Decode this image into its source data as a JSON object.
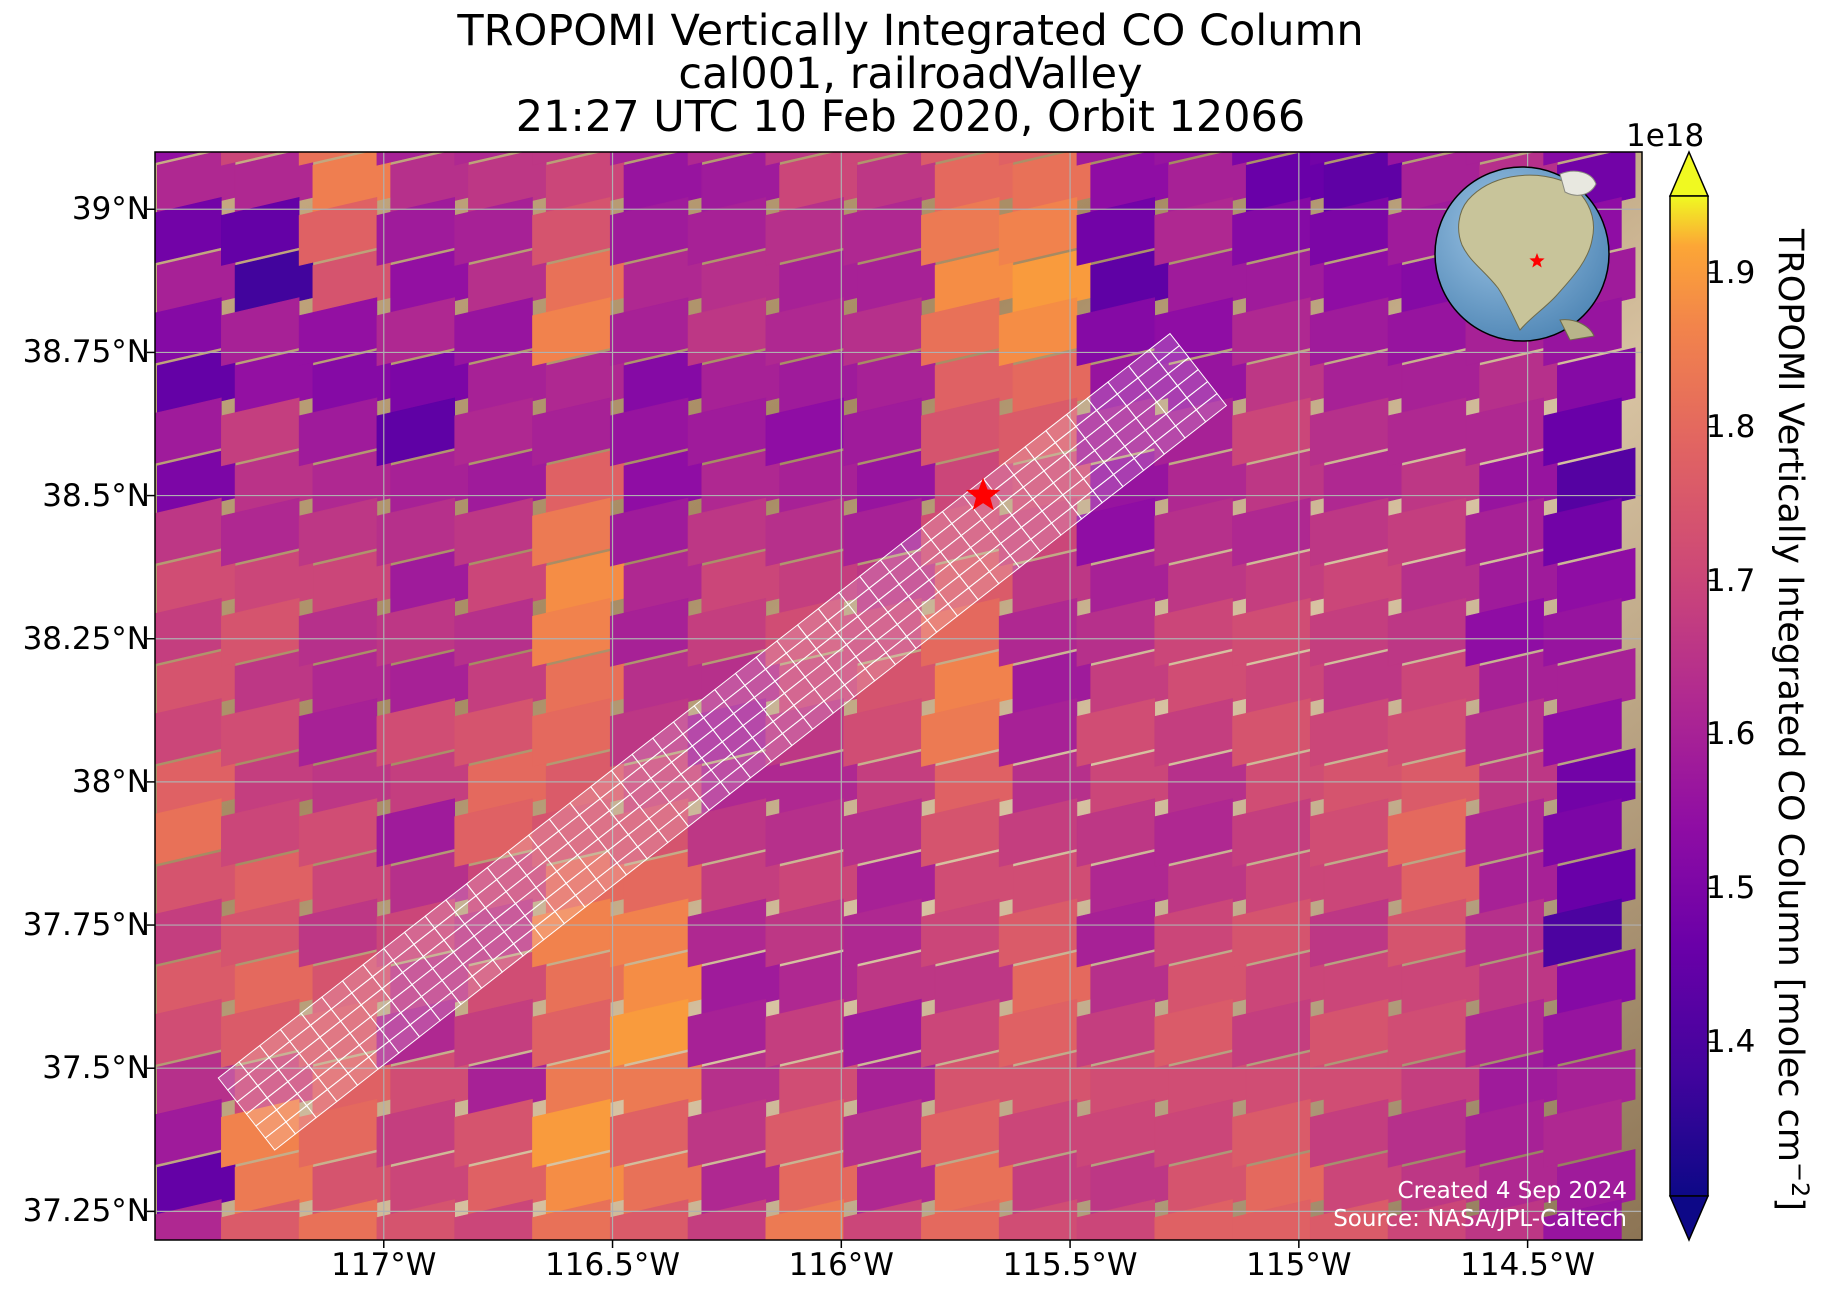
{
  "title": {
    "line1": "TROPOMI Vertically Integrated CO Column",
    "line2": "cal001, railroadValley",
    "line3": "21:27 UTC 10 Feb 2020, Orbit 12066"
  },
  "credits": {
    "created": "Created 4 Sep 2024",
    "source": "Source: NASA/JPL-Caltech"
  },
  "chart_data": {
    "type": "heatmap",
    "map": true,
    "lon_range": [
      -117.5,
      -114.25
    ],
    "lat_range": [
      37.2,
      39.1
    ],
    "x_ticks": [
      -117,
      -116.5,
      -116,
      -115.5,
      -115,
      -114.5
    ],
    "x_tick_labels": [
      "117°W",
      "116.5°W",
      "116°W",
      "115.5°W",
      "115°W",
      "114.5°W"
    ],
    "y_ticks": [
      37.25,
      37.5,
      37.75,
      38,
      38.25,
      38.5,
      38.75,
      39
    ],
    "y_tick_labels": [
      "37.25°N",
      "37.5°N",
      "37.75°N",
      "38°N",
      "38.25°N",
      "38.5°N",
      "38.75°N",
      "39°N"
    ],
    "grid": true,
    "colorbar": {
      "label": "TROPOMI Vertically Integrated CO Column [molec cm",
      "label_exponent": "−2",
      "label_close": "]",
      "offset_text": "1e18",
      "range": [
        1.3,
        1.95
      ],
      "ticks": [
        1.4,
        1.5,
        1.6,
        1.7,
        1.8,
        1.9
      ],
      "tick_labels": [
        "1.4",
        "1.5",
        "1.6",
        "1.7",
        "1.8",
        "1.9"
      ],
      "colormap": "plasma",
      "extend": "both"
    },
    "site_marker": {
      "name": "railroadValley",
      "lon": -115.69,
      "lat": 38.5,
      "symbol": "star",
      "color": "#ff0000"
    },
    "target_swath": {
      "outline_color": "#ffffff",
      "start": {
        "lon": -117.3,
        "lat": 37.42
      },
      "end": {
        "lon": -115.22,
        "lat": 38.72
      }
    },
    "inset_globe": {
      "marker_lon": -115.69,
      "marker_lat": 38.5,
      "marker_color": "#ff0000"
    },
    "swath_columns": [
      {
        "lon": -117.44,
        "values": [
          1.55,
          1.62,
          1.48,
          1.6,
          1.52,
          1.45,
          1.58,
          1.5,
          1.66,
          1.72,
          1.68,
          1.74,
          1.7,
          1.78,
          1.82,
          1.74,
          1.68,
          1.76,
          1.72,
          1.64,
          1.58,
          1.45,
          1.62,
          1.6
        ]
      },
      {
        "lon": -117.27,
        "values": [
          1.7,
          1.62,
          1.45,
          1.38,
          1.6,
          1.55,
          1.68,
          1.65,
          1.62,
          1.7,
          1.74,
          1.66,
          1.72,
          1.68,
          1.7,
          1.78,
          1.74,
          1.8,
          1.76,
          1.7,
          1.86,
          1.84,
          1.76,
          1.72
        ]
      },
      {
        "lon": -117.1,
        "values": [
          1.82,
          1.85,
          1.78,
          1.74,
          1.55,
          1.52,
          1.58,
          1.62,
          1.66,
          1.7,
          1.64,
          1.62,
          1.6,
          1.66,
          1.72,
          1.7,
          1.66,
          1.74,
          1.76,
          1.78,
          1.8,
          1.74,
          1.82,
          1.8
        ]
      },
      {
        "lon": -116.93,
        "values": [
          1.6,
          1.64,
          1.58,
          1.55,
          1.62,
          1.5,
          1.44,
          1.6,
          1.64,
          1.58,
          1.66,
          1.6,
          1.72,
          1.68,
          1.58,
          1.64,
          1.7,
          1.66,
          1.62,
          1.72,
          1.68,
          1.7,
          1.74,
          1.66
        ]
      },
      {
        "lon": -116.76,
        "values": [
          1.62,
          1.66,
          1.6,
          1.64,
          1.56,
          1.6,
          1.62,
          1.58,
          1.66,
          1.7,
          1.64,
          1.68,
          1.74,
          1.8,
          1.78,
          1.7,
          1.66,
          1.72,
          1.68,
          1.6,
          1.74,
          1.78,
          1.7,
          1.68
        ]
      },
      {
        "lon": -116.59,
        "values": [
          1.66,
          1.7,
          1.74,
          1.82,
          1.86,
          1.62,
          1.6,
          1.78,
          1.84,
          1.88,
          1.86,
          1.82,
          1.8,
          1.76,
          1.74,
          1.8,
          1.86,
          1.82,
          1.78,
          1.84,
          1.9,
          1.88,
          1.82,
          1.78
        ]
      },
      {
        "lon": -116.42,
        "values": [
          1.6,
          1.56,
          1.58,
          1.62,
          1.6,
          1.52,
          1.56,
          1.54,
          1.58,
          1.62,
          1.6,
          1.64,
          1.66,
          1.7,
          1.74,
          1.8,
          1.86,
          1.88,
          1.9,
          1.84,
          1.78,
          1.82,
          1.76,
          1.7
        ]
      },
      {
        "lon": -116.25,
        "values": [
          1.62,
          1.58,
          1.6,
          1.64,
          1.66,
          1.6,
          1.58,
          1.62,
          1.66,
          1.7,
          1.68,
          1.64,
          1.6,
          1.62,
          1.66,
          1.68,
          1.62,
          1.58,
          1.6,
          1.64,
          1.66,
          1.62,
          1.68,
          1.72
        ]
      },
      {
        "lon": -116.08,
        "values": [
          1.66,
          1.7,
          1.64,
          1.6,
          1.62,
          1.58,
          1.54,
          1.6,
          1.64,
          1.68,
          1.72,
          1.7,
          1.66,
          1.62,
          1.64,
          1.7,
          1.66,
          1.62,
          1.68,
          1.72,
          1.76,
          1.8,
          1.84,
          1.86
        ]
      },
      {
        "lon": -115.91,
        "values": [
          1.7,
          1.66,
          1.62,
          1.6,
          1.64,
          1.6,
          1.58,
          1.56,
          1.6,
          1.66,
          1.7,
          1.74,
          1.72,
          1.68,
          1.64,
          1.6,
          1.62,
          1.66,
          1.58,
          1.6,
          1.64,
          1.62,
          1.7,
          1.74
        ]
      },
      {
        "lon": -115.74,
        "values": [
          1.76,
          1.8,
          1.84,
          1.88,
          1.82,
          1.78,
          1.74,
          1.7,
          1.72,
          1.76,
          1.8,
          1.86,
          1.84,
          1.78,
          1.74,
          1.72,
          1.7,
          1.66,
          1.7,
          1.74,
          1.78,
          1.82,
          1.8,
          1.76
        ]
      },
      {
        "lon": -115.57,
        "values": [
          1.78,
          1.82,
          1.86,
          1.9,
          1.88,
          1.8,
          1.76,
          1.72,
          1.7,
          1.66,
          1.62,
          1.58,
          1.6,
          1.64,
          1.68,
          1.72,
          1.76,
          1.8,
          1.78,
          1.74,
          1.7,
          1.68,
          1.72,
          1.74
        ]
      },
      {
        "lon": -115.4,
        "values": [
          1.58,
          1.54,
          1.48,
          1.44,
          1.52,
          1.56,
          1.6,
          1.56,
          1.54,
          1.6,
          1.64,
          1.68,
          1.72,
          1.7,
          1.66,
          1.62,
          1.6,
          1.64,
          1.68,
          1.72,
          1.7,
          1.66,
          1.7,
          1.72
        ]
      },
      {
        "lon": -115.23,
        "values": [
          1.56,
          1.6,
          1.62,
          1.58,
          1.54,
          1.56,
          1.6,
          1.62,
          1.64,
          1.66,
          1.7,
          1.72,
          1.68,
          1.64,
          1.62,
          1.66,
          1.7,
          1.74,
          1.76,
          1.72,
          1.7,
          1.74,
          1.78,
          1.76
        ]
      },
      {
        "lon": -115.06,
        "values": [
          1.5,
          1.46,
          1.52,
          1.58,
          1.62,
          1.66,
          1.7,
          1.66,
          1.62,
          1.68,
          1.72,
          1.7,
          1.74,
          1.72,
          1.68,
          1.7,
          1.74,
          1.7,
          1.68,
          1.72,
          1.76,
          1.8,
          1.78,
          1.74
        ]
      },
      {
        "lon": -114.89,
        "values": [
          1.48,
          1.44,
          1.5,
          1.54,
          1.58,
          1.6,
          1.64,
          1.62,
          1.66,
          1.7,
          1.68,
          1.66,
          1.7,
          1.74,
          1.72,
          1.7,
          1.66,
          1.7,
          1.74,
          1.72,
          1.68,
          1.7,
          1.76,
          1.74
        ]
      },
      {
        "lon": -114.72,
        "values": [
          1.56,
          1.6,
          1.58,
          1.52,
          1.56,
          1.6,
          1.62,
          1.66,
          1.68,
          1.64,
          1.66,
          1.7,
          1.72,
          1.76,
          1.8,
          1.78,
          1.74,
          1.7,
          1.72,
          1.68,
          1.64,
          1.66,
          1.7,
          1.72
        ]
      },
      {
        "lon": -114.55,
        "values": [
          1.6,
          1.64,
          1.62,
          1.58,
          1.6,
          1.64,
          1.62,
          1.56,
          1.6,
          1.58,
          1.54,
          1.6,
          1.64,
          1.66,
          1.62,
          1.6,
          1.64,
          1.66,
          1.62,
          1.58,
          1.6,
          1.62,
          1.66,
          1.7
        ]
      },
      {
        "lon": -114.38,
        "values": [
          1.52,
          1.48,
          1.54,
          1.58,
          1.56,
          1.52,
          1.46,
          1.42,
          1.48,
          1.54,
          1.56,
          1.6,
          1.54,
          1.48,
          1.5,
          1.46,
          1.4,
          1.52,
          1.56,
          1.6,
          1.62,
          1.58,
          1.56,
          1.6
        ]
      }
    ]
  }
}
